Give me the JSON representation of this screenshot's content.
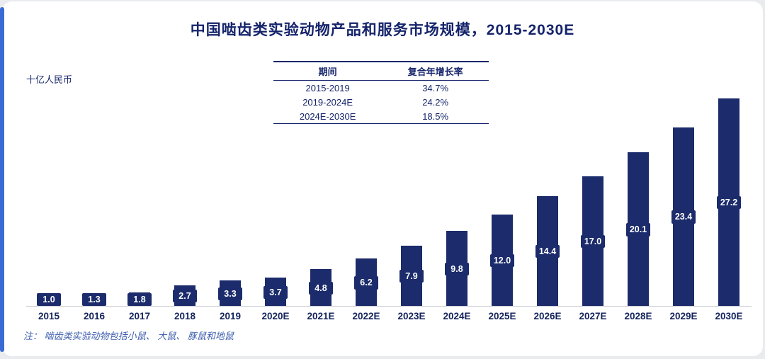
{
  "page": {
    "title": "中国啮齿类实验动物产品和服务市场规模，2015-2030E",
    "unit_label": "十亿人民币",
    "note": "注： 啮齿类实验动物包括小鼠、 大鼠、 豚鼠和地鼠"
  },
  "cagr_table": {
    "headers": [
      "期间",
      "复合年增长率"
    ],
    "rows": [
      [
        "2015-2019",
        "34.7%"
      ],
      [
        "2019-2024E",
        "24.2%"
      ],
      [
        "2024E-2030E",
        "18.5%"
      ]
    ]
  },
  "chart_data": {
    "type": "bar",
    "title": "中国啮齿类实验动物产品和服务市场规模，2015-2030E",
    "ylabel": "十亿人民币",
    "xlabel": "",
    "categories": [
      "2015",
      "2016",
      "2017",
      "2018",
      "2019",
      "2020E",
      "2021E",
      "2022E",
      "2023E",
      "2024E",
      "2025E",
      "2026E",
      "2027E",
      "2028E",
      "2029E",
      "2030E"
    ],
    "values": [
      1.0,
      1.3,
      1.8,
      2.7,
      3.3,
      3.7,
      4.8,
      6.2,
      7.9,
      9.8,
      12.0,
      14.4,
      17.0,
      20.1,
      23.4,
      27.2
    ],
    "ylim": [
      0,
      28
    ],
    "grid": false,
    "legend": "none",
    "bar_color": "#1b2b6b",
    "value_label_text_color": "#ffffff",
    "value_label_background": "#1b2b6b"
  },
  "colors": {
    "accent_strip": "#3a6ad4",
    "title_text": "#15246b",
    "note_text": "#3c5cae",
    "card_background": "#ffffff",
    "page_background": "#e9ebee"
  }
}
